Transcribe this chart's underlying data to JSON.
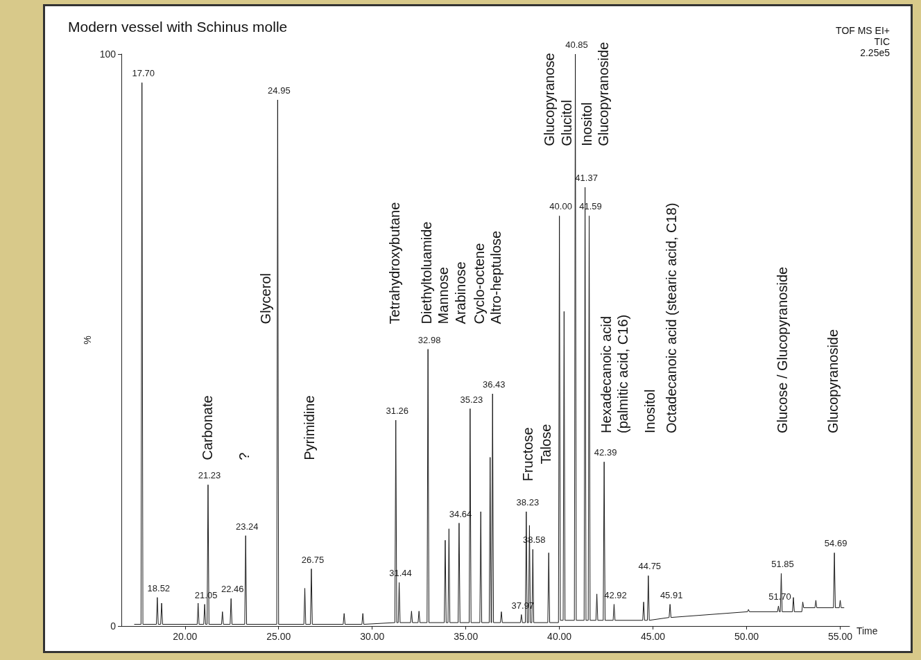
{
  "chart_data": {
    "type": "line",
    "title": "Modern vessel with Schinus molle",
    "xlabel": "Time",
    "ylabel": "%",
    "xlim": [
      16.6,
      55.5
    ],
    "xticks": [
      {
        "value": 20,
        "label": "20.00"
      },
      {
        "value": 25,
        "label": "25.00"
      },
      {
        "value": 30,
        "label": "30.00"
      },
      {
        "value": 35,
        "label": "35.00"
      },
      {
        "value": 40,
        "label": "40.00"
      },
      {
        "value": 45,
        "label": "45.00"
      },
      {
        "value": 50,
        "label": "50.00"
      },
      {
        "value": 55,
        "label": "55.00"
      }
    ],
    "ylim": [
      0,
      100
    ],
    "yticks": [
      0,
      100
    ],
    "grid": false,
    "marker": "none",
    "line_style": "solid",
    "series": [
      {
        "color": "#1a1a1a",
        "x": [
          17.3,
          17.65,
          17.7,
          17.75,
          18.47,
          18.52,
          18.57,
          18.7,
          18.75,
          18.8,
          20.65,
          20.7,
          20.75,
          21.0,
          21.05,
          21.1,
          21.18,
          21.23,
          21.28,
          21.95,
          22.0,
          22.05,
          22.41,
          22.46,
          22.51,
          23.19,
          23.24,
          23.29,
          24.9,
          24.95,
          25.0,
          26.35,
          26.4,
          26.45,
          26.7,
          26.75,
          26.8,
          28.45,
          28.5,
          28.55,
          29.45,
          29.5,
          29.55,
          31.21,
          31.26,
          31.31,
          31.39,
          31.44,
          31.49,
          32.05,
          32.1,
          32.15,
          32.45,
          32.5,
          32.55,
          32.93,
          32.98,
          33.03,
          33.85,
          33.9,
          33.95,
          34.05,
          34.1,
          34.15,
          34.59,
          34.64,
          34.69,
          35.18,
          35.23,
          35.28,
          35.75,
          35.8,
          35.85,
          36.25,
          36.3,
          36.35,
          36.38,
          36.43,
          36.48,
          36.85,
          36.9,
          36.95,
          37.92,
          37.97,
          38.02,
          38.18,
          38.23,
          38.28,
          38.35,
          38.4,
          38.45,
          38.53,
          38.58,
          38.63,
          39.38,
          39.43,
          39.48,
          39.95,
          40.0,
          40.05,
          40.2,
          40.25,
          40.3,
          40.8,
          40.85,
          40.9,
          41.32,
          41.37,
          41.42,
          41.54,
          41.59,
          41.64,
          41.95,
          42.0,
          42.05,
          42.34,
          42.39,
          42.44,
          42.87,
          42.92,
          42.97,
          44.45,
          44.5,
          44.55,
          44.7,
          44.75,
          44.8,
          45.86,
          45.91,
          45.96,
          50.05,
          50.1,
          50.15,
          51.65,
          51.7,
          51.75,
          51.8,
          51.85,
          51.9,
          52.45,
          52.5,
          52.55,
          52.95,
          53.0,
          53.05,
          53.65,
          53.7,
          53.75,
          54.64,
          54.69,
          54.74,
          54.95,
          55.0,
          55.05,
          55.2
        ],
        "values": [
          0.3,
          0.3,
          95,
          0.3,
          0.3,
          5,
          0.3,
          0.3,
          4,
          0.3,
          0.3,
          4,
          0.3,
          0.3,
          3.8,
          0.3,
          0.3,
          24.7,
          0.3,
          0.3,
          2.5,
          0.3,
          0.3,
          4.8,
          0.3,
          0.3,
          15.8,
          0.3,
          0.3,
          92,
          0.3,
          0.3,
          6.6,
          0.3,
          0.3,
          10,
          0.3,
          0.3,
          2.2,
          0.3,
          0.3,
          2.2,
          0.3,
          0.6,
          36,
          0.6,
          0.6,
          7.6,
          0.6,
          0.6,
          2.6,
          0.6,
          0.6,
          2.6,
          0.6,
          0.6,
          48.4,
          0.6,
          0.6,
          15,
          0.6,
          0.6,
          17,
          0.6,
          0.6,
          18,
          0.6,
          0.6,
          38,
          0.6,
          0.6,
          20,
          0.6,
          0.6,
          29.5,
          0.6,
          0.6,
          40.6,
          0.6,
          0.6,
          2.5,
          0.6,
          0.6,
          2,
          0.6,
          0.6,
          20,
          0.6,
          0.6,
          17.6,
          0.6,
          0.6,
          13.4,
          0.6,
          0.6,
          12.8,
          0.6,
          0.6,
          71.7,
          1,
          1,
          55,
          1,
          1,
          100,
          1,
          1,
          76.7,
          1,
          1,
          71.7,
          1,
          1,
          5.6,
          1,
          1,
          28.7,
          1,
          1,
          3.8,
          1,
          1,
          4.2,
          1,
          1,
          8.8,
          1,
          1.5,
          3.8,
          1.5,
          2.5,
          2.9,
          2.5,
          2.5,
          3.5,
          2.5,
          2.5,
          9.2,
          2.5,
          2.5,
          5,
          2.5,
          2.5,
          4.2,
          3.2,
          3.2,
          4.5,
          3.2,
          3.2,
          12.8,
          3.2,
          3.2,
          4.5,
          3.2,
          3.2
        ]
      }
    ],
    "annotations": [
      "TOF MS EI+",
      "TIC",
      "2.25e5",
      "Carbonate",
      "?",
      "Glycerol",
      "Pyrimidine",
      "Tetrahydroxybutane",
      "Diethyltoluamide",
      "Mannose",
      "Arabinose",
      "Cyclo-octene",
      "Altro-heptulose",
      "Fructose",
      "Talose",
      "Glucopyranose",
      "Glucitol",
      "Inositol",
      "Glucopyranoside",
      "Hexadecanoic acid",
      "(palmitic acid, C16)",
      "Inositol",
      "Octadecanoic acid (stearic acid, C18)",
      "Glucose / Glucopyranoside",
      "Glucopyranoside",
      {
        "text": "17.70",
        "x": 17.7,
        "y": 95
      },
      {
        "text": "18.52",
        "x": 18.52,
        "y": 5
      },
      {
        "text": "21.05",
        "x": 21.05,
        "y": 3.8
      },
      {
        "text": "21.23",
        "x": 21.23,
        "y": 24.7
      },
      {
        "text": "22.46",
        "x": 22.46,
        "y": 4.8
      },
      {
        "text": "23.24",
        "x": 23.24,
        "y": 15.8
      },
      {
        "text": "24.95",
        "x": 24.95,
        "y": 92
      },
      {
        "text": "26.75",
        "x": 26.75,
        "y": 10
      },
      {
        "text": "31.26",
        "x": 31.26,
        "y": 36
      },
      {
        "text": "31.44",
        "x": 31.44,
        "y": 7.6
      },
      {
        "text": "32.98",
        "x": 32.98,
        "y": 48.4
      },
      {
        "text": "34.64",
        "x": 34.64,
        "y": 18
      },
      {
        "text": "35.23",
        "x": 35.23,
        "y": 38
      },
      {
        "text": "36.43",
        "x": 36.43,
        "y": 40.6
      },
      {
        "text": "37.97",
        "x": 37.97,
        "y": 2
      },
      {
        "text": "38.23",
        "x": 38.23,
        "y": 20
      },
      {
        "text": "38.58",
        "x": 38.58,
        "y": 13.4
      },
      {
        "text": "40.00",
        "x": 40.0,
        "y": 71.7
      },
      {
        "text": "40.85",
        "x": 40.85,
        "y": 100
      },
      {
        "text": "41.37",
        "x": 41.37,
        "y": 76.7
      },
      {
        "text": "41.59",
        "x": 41.59,
        "y": 71.7
      },
      {
        "text": "42.39",
        "x": 42.39,
        "y": 28.7
      },
      {
        "text": "42.92",
        "x": 42.92,
        "y": 3.8
      },
      {
        "text": "44.75",
        "x": 44.75,
        "y": 8.8
      },
      {
        "text": "45.91",
        "x": 45.91,
        "y": 3.8
      },
      {
        "text": "51.70",
        "x": 51.7,
        "y": 3.5
      },
      {
        "text": "51.85",
        "x": 51.85,
        "y": 9.2
      },
      {
        "text": "54.69",
        "x": 54.69,
        "y": 12.8
      }
    ]
  }
}
